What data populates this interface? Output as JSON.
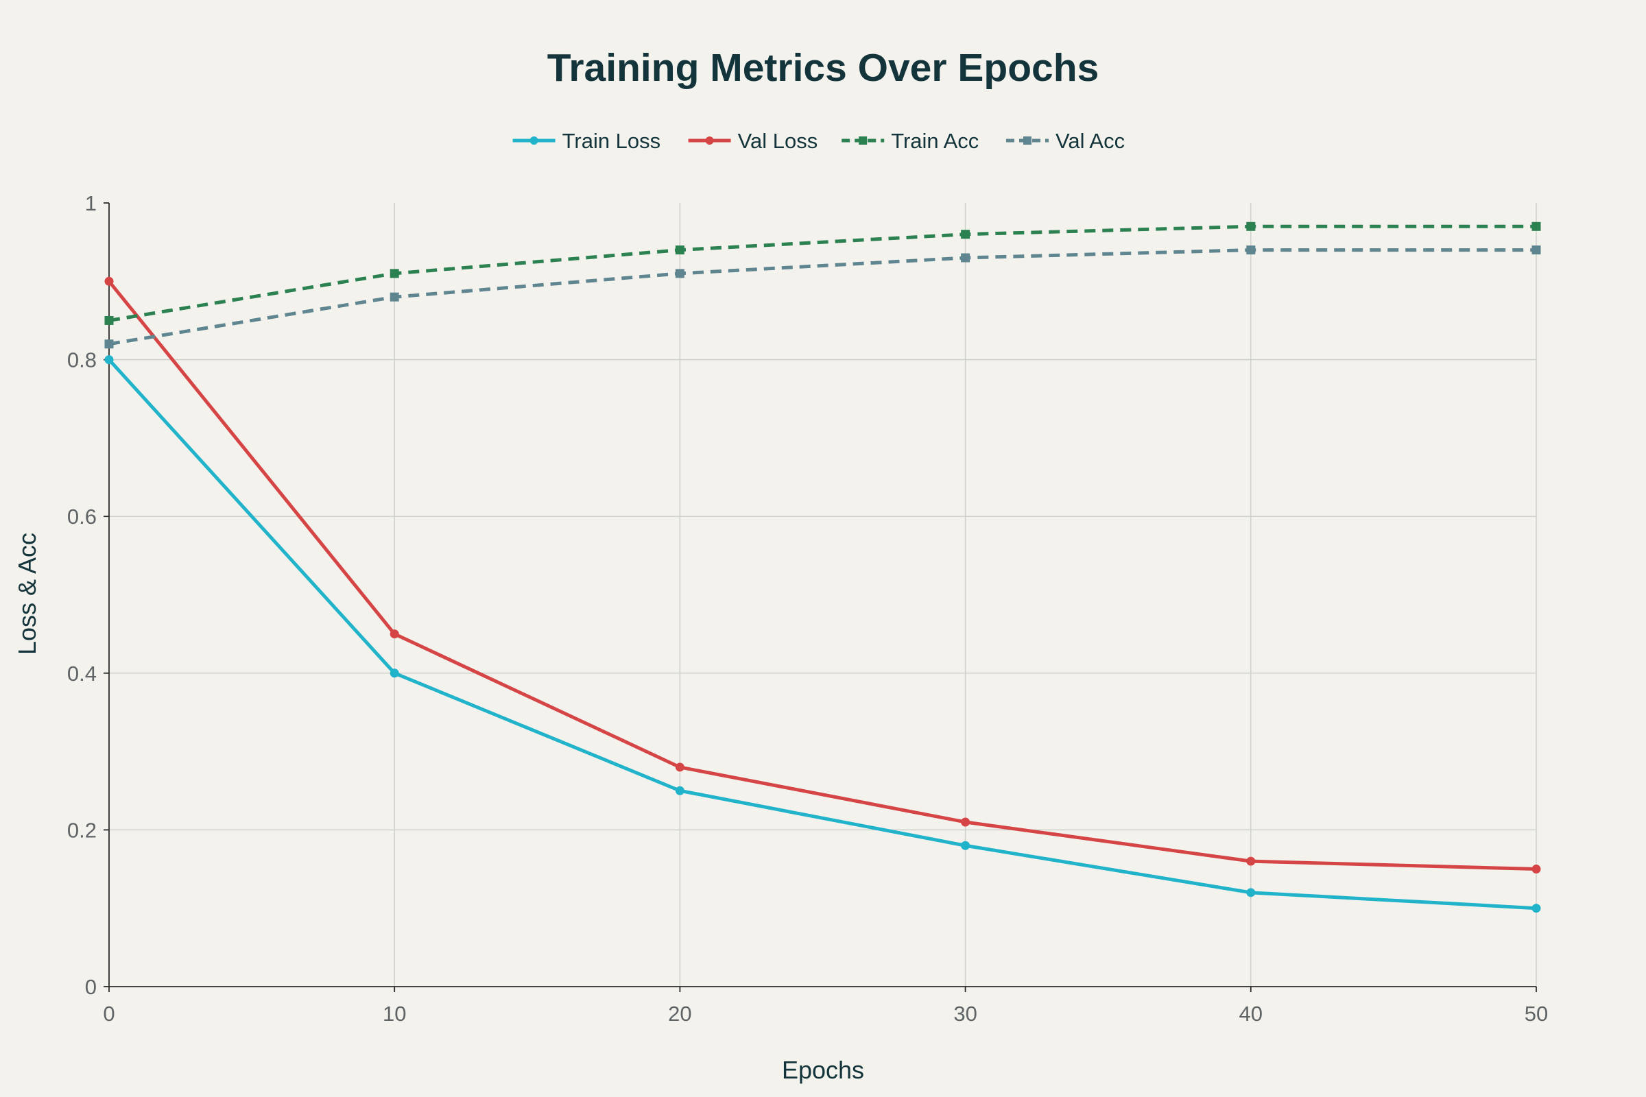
{
  "chart_data": {
    "type": "line",
    "title": "Training Metrics Over Epochs",
    "xlabel": "Epochs",
    "ylabel": "Loss & Acc",
    "x": [
      0,
      10,
      20,
      30,
      40,
      50
    ],
    "xlim": [
      0,
      50
    ],
    "ylim": [
      0,
      1
    ],
    "x_ticks": [
      "0",
      "10",
      "20",
      "30",
      "40",
      "50"
    ],
    "y_ticks": [
      "0",
      "0.2",
      "0.4",
      "0.6",
      "0.8",
      "1"
    ],
    "grid": true,
    "legend_position": "top-center",
    "series": [
      {
        "name": "Train Loss",
        "values": [
          0.8,
          0.4,
          0.25,
          0.18,
          0.12,
          0.1
        ],
        "color": "#21b3ca",
        "dash": "solid",
        "marker": "circle"
      },
      {
        "name": "Val Loss",
        "values": [
          0.9,
          0.45,
          0.28,
          0.21,
          0.16,
          0.15
        ],
        "color": "#d64545",
        "dash": "solid",
        "marker": "circle"
      },
      {
        "name": "Train Acc",
        "values": [
          0.85,
          0.91,
          0.94,
          0.96,
          0.97,
          0.97
        ],
        "color": "#2c8151",
        "dash": "dashed",
        "marker": "square"
      },
      {
        "name": "Val Acc",
        "values": [
          0.82,
          0.88,
          0.91,
          0.93,
          0.94,
          0.94
        ],
        "color": "#5f8690",
        "dash": "dashed",
        "marker": "square"
      }
    ]
  }
}
